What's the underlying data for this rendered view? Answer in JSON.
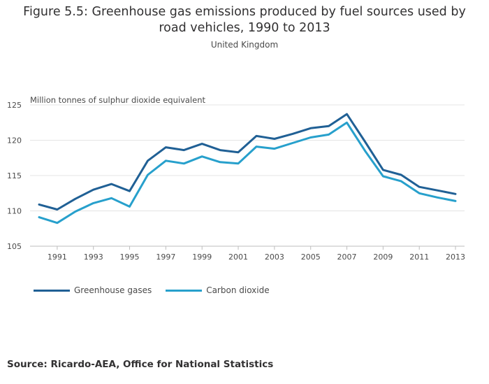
{
  "chart_data": {
    "type": "line",
    "title_line1": "Figure 5.5: Greenhouse gas emissions produced by fuel sources used by",
    "title_line2": "road vehicles, 1990 to 2013",
    "subtitle": "United Kingdom",
    "ylabel": "Million tonnes of sulphur dioxide equivalent",
    "xlabel": "",
    "x": [
      1990,
      1991,
      1992,
      1993,
      1994,
      1995,
      1996,
      1997,
      1998,
      1999,
      2000,
      2001,
      2002,
      2003,
      2004,
      2005,
      2006,
      2007,
      2008,
      2009,
      2010,
      2011,
      2012,
      2013
    ],
    "xticks": [
      "1991",
      "1993",
      "1995",
      "1997",
      "1999",
      "2001",
      "2003",
      "2005",
      "2007",
      "2009",
      "2011",
      "2013"
    ],
    "yticks": [
      "105",
      "110",
      "115",
      "120",
      "125"
    ],
    "ylim": [
      105,
      125
    ],
    "xlim": [
      1989.5,
      2013.5
    ],
    "grid": true,
    "legend_position": "bottom-left",
    "series": [
      {
        "name": "Greenhouse gases",
        "color": "#206095",
        "values": [
          110.9,
          110.2,
          111.7,
          113.0,
          113.8,
          112.8,
          117.1,
          119.0,
          118.6,
          119.5,
          118.6,
          118.3,
          120.6,
          120.2,
          120.9,
          121.7,
          122.0,
          123.7,
          119.8,
          115.8,
          115.1,
          113.4,
          112.9,
          112.4
        ]
      },
      {
        "name": "Carbon dioxide",
        "color": "#27a0cc",
        "values": [
          109.1,
          108.3,
          109.9,
          111.1,
          111.8,
          110.6,
          115.1,
          117.1,
          116.7,
          117.7,
          116.9,
          116.7,
          119.1,
          118.8,
          119.6,
          120.4,
          120.8,
          122.5,
          118.5,
          114.9,
          114.2,
          112.5,
          111.9,
          111.4
        ]
      }
    ]
  },
  "source": "Source: Ricardo-AEA, Office for National Statistics"
}
